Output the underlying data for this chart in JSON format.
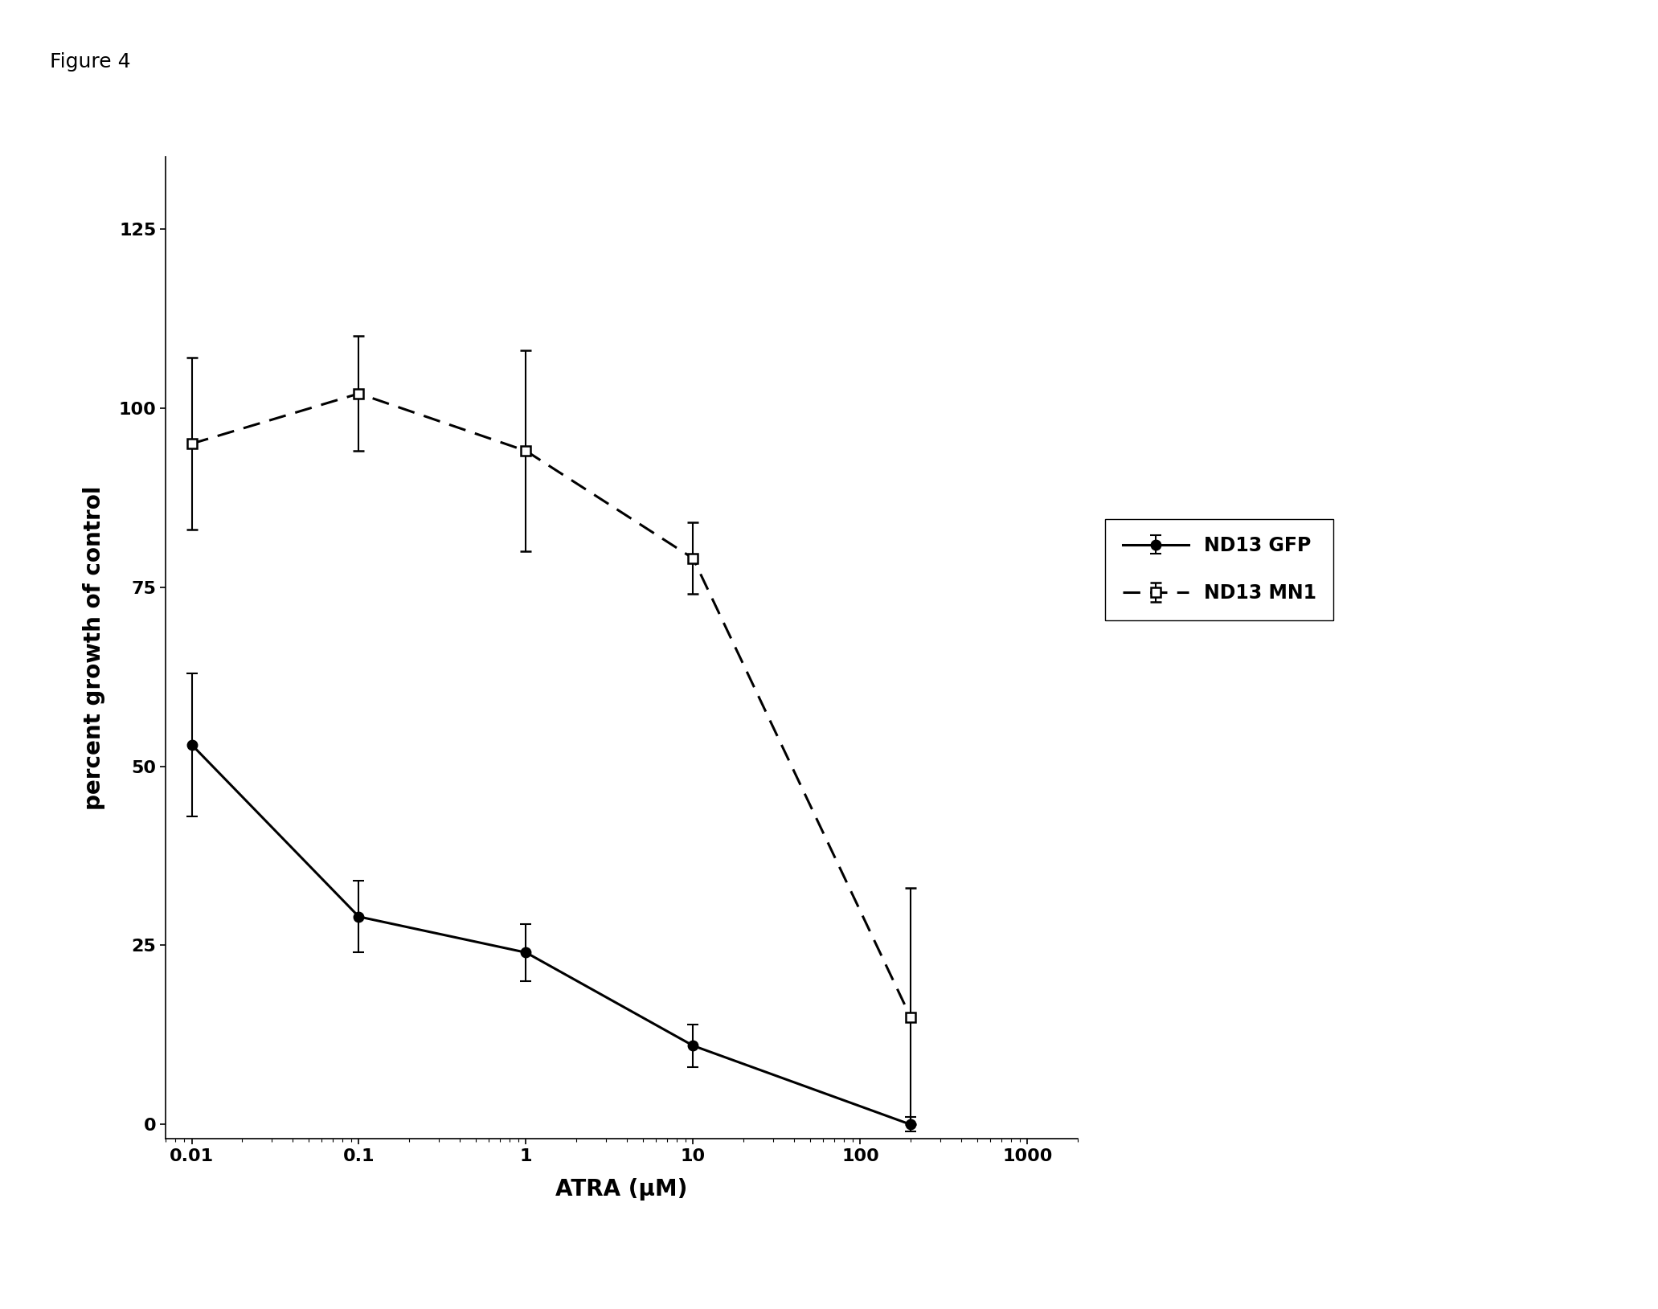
{
  "figure_label": "Figure 4",
  "xlabel": "ATRA (μM)",
  "ylabel": "percent growth of control",
  "xlim": [
    0.007,
    2000
  ],
  "ylim": [
    -2,
    135
  ],
  "yticks": [
    0,
    25,
    50,
    75,
    100,
    125
  ],
  "xtick_labels": [
    "0.01",
    "0.1",
    "1",
    "10",
    "100",
    "1000"
  ],
  "xtick_vals": [
    0.01,
    0.1,
    1,
    10,
    100,
    1000
  ],
  "gfp_x": [
    0.01,
    0.1,
    1,
    10,
    200
  ],
  "gfp_y": [
    53,
    29,
    24,
    11,
    0
  ],
  "gfp_yerr_low": [
    10,
    5,
    4,
    3,
    1
  ],
  "gfp_yerr_high": [
    10,
    5,
    4,
    3,
    1
  ],
  "mn1_x": [
    0.01,
    0.1,
    1,
    10,
    200
  ],
  "mn1_y": [
    95,
    102,
    94,
    79,
    15
  ],
  "mn1_yerr_low": [
    12,
    8,
    14,
    5,
    15
  ],
  "mn1_yerr_high": [
    12,
    8,
    14,
    5,
    18
  ],
  "gfp_color": "#000000",
  "mn1_color": "#000000",
  "legend_labels": [
    "ND13 GFP",
    "ND13 MN1"
  ],
  "background_color": "#ffffff",
  "label_fontsize": 20,
  "tick_fontsize": 16,
  "legend_fontsize": 17,
  "figure_label_fontsize": 18,
  "line_width": 2.2
}
